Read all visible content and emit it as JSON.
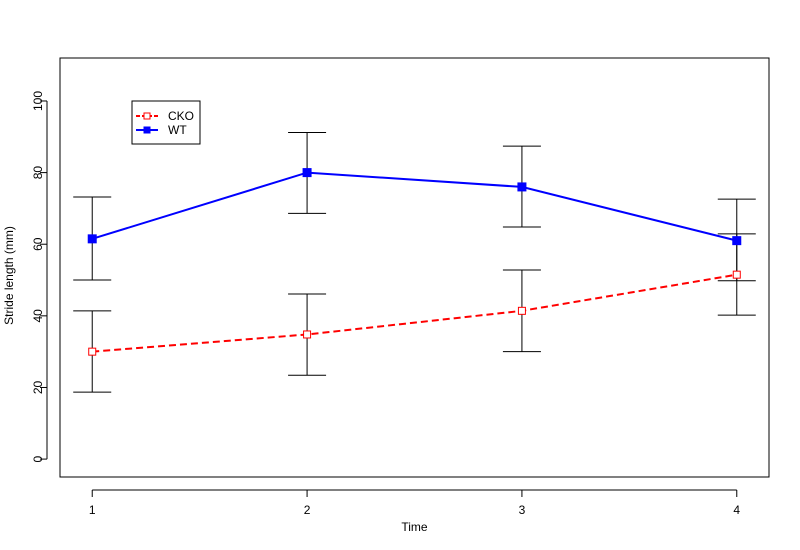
{
  "chart_data": {
    "type": "line",
    "title": "",
    "xlabel": "Time",
    "ylabel": "Stride length (mm)",
    "x": [
      1,
      2,
      3,
      4
    ],
    "xlim": [
      0.85,
      4.15
    ],
    "ylim": [
      -5,
      112
    ],
    "xticks": [
      1,
      2,
      3,
      4
    ],
    "yticks": [
      0,
      20,
      40,
      60,
      80,
      100
    ],
    "grid": false,
    "legend_position": "top-left",
    "series": [
      {
        "name": "CKO",
        "color": "#ff0000",
        "line_style": "dashed",
        "marker": "open-square",
        "values": [
          30,
          34.8,
          41.4,
          51.5
        ],
        "error_low": [
          18.7,
          23.4,
          30.0,
          40.2
        ],
        "error_high": [
          41.4,
          46.1,
          52.8,
          62.9
        ]
      },
      {
        "name": "WT",
        "color": "#0000ff",
        "line_style": "solid",
        "marker": "filled-square",
        "values": [
          61.5,
          80.0,
          76.0,
          61.0
        ],
        "error_low": [
          50.0,
          68.6,
          64.8,
          49.8
        ],
        "error_high": [
          73.2,
          91.2,
          87.4,
          72.6
        ]
      }
    ]
  }
}
